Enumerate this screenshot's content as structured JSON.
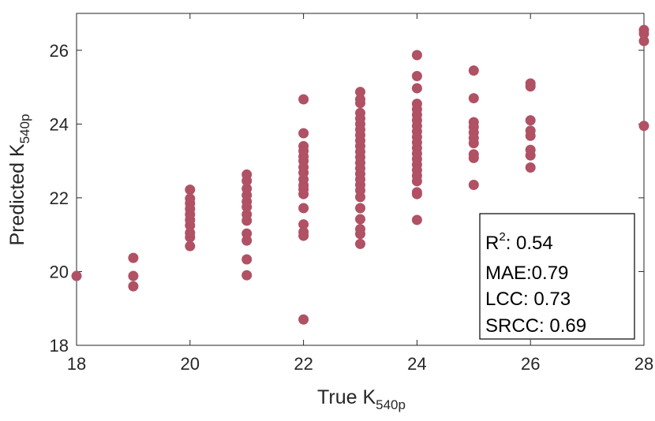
{
  "chart_data": {
    "type": "scatter",
    "xlabel": "True K",
    "xlabel_sub": "540p",
    "ylabel": "Predicted K",
    "ylabel_sub": "540p",
    "xlim": [
      18,
      28
    ],
    "ylim": [
      18,
      27
    ],
    "xticks": [
      "18",
      "20",
      "22",
      "24",
      "26",
      "28"
    ],
    "yticks": [
      "18",
      "20",
      "22",
      "24",
      "26"
    ],
    "marker_color": "#b05164",
    "grid": false,
    "stats_box": {
      "placement": "bottom-right",
      "r2_label": "R",
      "r2_sup": "2",
      "r2_value": ": 0.54",
      "mae": "MAE:0.79",
      "lcc": "LCC: 0.73",
      "srcc": "SRCC: 0.69"
    },
    "points": [
      {
        "x": 18,
        "y": 19.88
      },
      {
        "x": 19,
        "y": 19.6
      },
      {
        "x": 19,
        "y": 19.88
      },
      {
        "x": 19,
        "y": 20.37
      },
      {
        "x": 20,
        "y": 20.69
      },
      {
        "x": 20,
        "y": 20.93
      },
      {
        "x": 20,
        "y": 21.05
      },
      {
        "x": 20,
        "y": 21.25
      },
      {
        "x": 20,
        "y": 21.4
      },
      {
        "x": 20,
        "y": 21.55
      },
      {
        "x": 20,
        "y": 21.7
      },
      {
        "x": 20,
        "y": 21.85
      },
      {
        "x": 20,
        "y": 21.98
      },
      {
        "x": 20,
        "y": 22.22
      },
      {
        "x": 21,
        "y": 19.9
      },
      {
        "x": 21,
        "y": 20.33
      },
      {
        "x": 21,
        "y": 20.84
      },
      {
        "x": 21,
        "y": 21.03
      },
      {
        "x": 21,
        "y": 21.38
      },
      {
        "x": 21,
        "y": 21.55
      },
      {
        "x": 21,
        "y": 21.75
      },
      {
        "x": 21,
        "y": 21.9
      },
      {
        "x": 21,
        "y": 22.07
      },
      {
        "x": 21,
        "y": 22.25
      },
      {
        "x": 21,
        "y": 22.46
      },
      {
        "x": 21,
        "y": 22.63
      },
      {
        "x": 22,
        "y": 18.7
      },
      {
        "x": 22,
        "y": 20.97
      },
      {
        "x": 22,
        "y": 21.07
      },
      {
        "x": 22,
        "y": 21.28
      },
      {
        "x": 22,
        "y": 21.72
      },
      {
        "x": 22,
        "y": 22.1
      },
      {
        "x": 22,
        "y": 22.23
      },
      {
        "x": 22,
        "y": 22.34
      },
      {
        "x": 22,
        "y": 22.5
      },
      {
        "x": 22,
        "y": 22.68
      },
      {
        "x": 22,
        "y": 22.83
      },
      {
        "x": 22,
        "y": 23.0
      },
      {
        "x": 22,
        "y": 23.12
      },
      {
        "x": 22,
        "y": 23.27
      },
      {
        "x": 22,
        "y": 23.4
      },
      {
        "x": 22,
        "y": 23.75
      },
      {
        "x": 22,
        "y": 24.67
      },
      {
        "x": 23,
        "y": 20.75
      },
      {
        "x": 23,
        "y": 21.02
      },
      {
        "x": 23,
        "y": 21.15
      },
      {
        "x": 23,
        "y": 21.42
      },
      {
        "x": 23,
        "y": 21.72
      },
      {
        "x": 23,
        "y": 22.02
      },
      {
        "x": 23,
        "y": 22.2
      },
      {
        "x": 23,
        "y": 22.35
      },
      {
        "x": 23,
        "y": 22.5
      },
      {
        "x": 23,
        "y": 22.65
      },
      {
        "x": 23,
        "y": 22.8
      },
      {
        "x": 23,
        "y": 22.95
      },
      {
        "x": 23,
        "y": 23.1
      },
      {
        "x": 23,
        "y": 23.25
      },
      {
        "x": 23,
        "y": 23.4
      },
      {
        "x": 23,
        "y": 23.55
      },
      {
        "x": 23,
        "y": 23.7
      },
      {
        "x": 23,
        "y": 23.85
      },
      {
        "x": 23,
        "y": 24.0
      },
      {
        "x": 23,
        "y": 24.15
      },
      {
        "x": 23,
        "y": 24.3
      },
      {
        "x": 23,
        "y": 24.57
      },
      {
        "x": 23,
        "y": 24.67
      },
      {
        "x": 23,
        "y": 24.87
      },
      {
        "x": 24,
        "y": 21.4
      },
      {
        "x": 24,
        "y": 22.1
      },
      {
        "x": 24,
        "y": 22.15
      },
      {
        "x": 24,
        "y": 22.45
      },
      {
        "x": 24,
        "y": 22.6
      },
      {
        "x": 24,
        "y": 22.75
      },
      {
        "x": 24,
        "y": 22.9
      },
      {
        "x": 24,
        "y": 23.05
      },
      {
        "x": 24,
        "y": 23.2
      },
      {
        "x": 24,
        "y": 23.35
      },
      {
        "x": 24,
        "y": 23.5
      },
      {
        "x": 24,
        "y": 23.65
      },
      {
        "x": 24,
        "y": 23.8
      },
      {
        "x": 24,
        "y": 23.95
      },
      {
        "x": 24,
        "y": 24.1
      },
      {
        "x": 24,
        "y": 24.25
      },
      {
        "x": 24,
        "y": 24.4
      },
      {
        "x": 24,
        "y": 24.55
      },
      {
        "x": 24,
        "y": 24.97
      },
      {
        "x": 24,
        "y": 25.3
      },
      {
        "x": 24,
        "y": 25.87
      },
      {
        "x": 25,
        "y": 22.35
      },
      {
        "x": 25,
        "y": 23.08
      },
      {
        "x": 25,
        "y": 23.18
      },
      {
        "x": 25,
        "y": 23.48
      },
      {
        "x": 25,
        "y": 23.62
      },
      {
        "x": 25,
        "y": 23.77
      },
      {
        "x": 25,
        "y": 23.92
      },
      {
        "x": 25,
        "y": 24.05
      },
      {
        "x": 25,
        "y": 24.7
      },
      {
        "x": 25,
        "y": 25.45
      },
      {
        "x": 26,
        "y": 22.82
      },
      {
        "x": 26,
        "y": 23.15
      },
      {
        "x": 26,
        "y": 23.3
      },
      {
        "x": 26,
        "y": 23.68
      },
      {
        "x": 26,
        "y": 23.82
      },
      {
        "x": 26,
        "y": 24.1
      },
      {
        "x": 26,
        "y": 25.02
      },
      {
        "x": 26,
        "y": 25.1
      },
      {
        "x": 28,
        "y": 23.95
      },
      {
        "x": 28,
        "y": 26.25
      },
      {
        "x": 28,
        "y": 26.45
      },
      {
        "x": 28,
        "y": 26.55
      }
    ]
  }
}
